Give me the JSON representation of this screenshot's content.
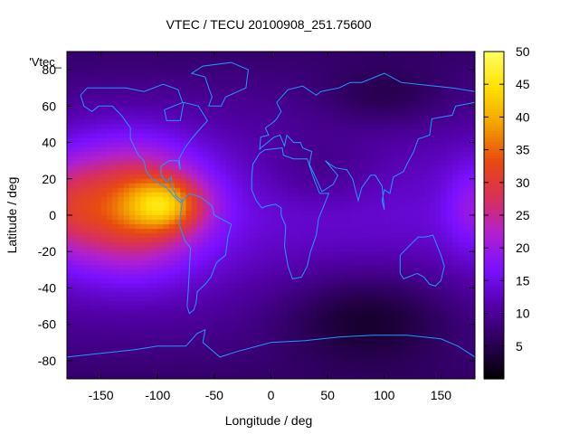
{
  "chart_data": {
    "type": "heatmap",
    "title": "VTEC / TECU 20100908_251.75600",
    "xlabel": "Longitude / deg",
    "ylabel": "Latitude / deg",
    "xlim": [
      -180,
      180
    ],
    "ylim": [
      -90,
      90
    ],
    "x_ticks": [
      -150,
      -100,
      -50,
      0,
      50,
      100,
      150
    ],
    "y_ticks": [
      -80,
      -60,
      -40,
      -20,
      0,
      20,
      40,
      60,
      80
    ],
    "legend_label": "'Vtec_",
    "colorbar": {
      "range": [
        0,
        50
      ],
      "ticks": [
        5,
        10,
        15,
        20,
        25,
        30,
        35,
        40,
        45,
        50
      ],
      "palette": [
        "#000000",
        "#2a0055",
        "#5200a6",
        "#7a10ff",
        "#b020d0",
        "#d8305a",
        "#e84a10",
        "#f2a000",
        "#ffe000",
        "#ffff60"
      ]
    },
    "colors": {
      "coastline": "#1e9bff",
      "background": "#7a28ff"
    },
    "peak": {
      "lon": -95,
      "lat": 5,
      "value": 50
    },
    "grid": false
  }
}
